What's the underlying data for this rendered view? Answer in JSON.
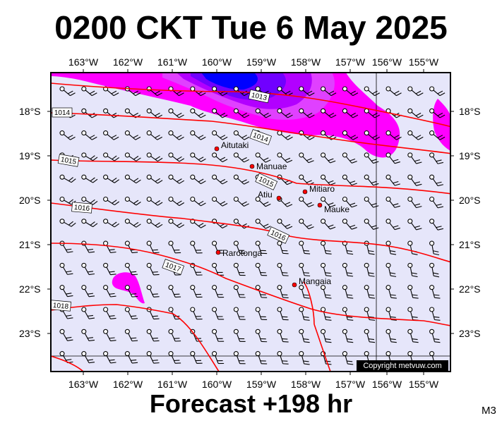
{
  "title": "0200 CKT Tue 6 May 2025",
  "footer": "Forecast +198 hr",
  "model_code": "M3",
  "copyright": "Copyright metvuw.com",
  "lon_labels": [
    "163°W",
    "162°W",
    "161°W",
    "160°W",
    "159°W",
    "158°W",
    "157°W",
    "156°W",
    "155°W"
  ],
  "lat_labels": [
    "18°S",
    "19°S",
    "20°S",
    "21°S",
    "22°S",
    "23°S"
  ],
  "towns": [
    {
      "name": "Aitutaki"
    },
    {
      "name": "Manuae"
    },
    {
      "name": "Mitiaro"
    },
    {
      "name": "Atiu"
    },
    {
      "name": "Mauke"
    },
    {
      "name": "Rarotonga"
    },
    {
      "name": "Mangaia"
    }
  ],
  "isobar_labels": [
    "1013",
    "1014",
    "1014",
    "1015",
    "1015",
    "1016",
    "1016",
    "1016",
    "1017",
    "1018"
  ],
  "colors": {
    "background": "#e6e6fa",
    "isobar": "#ff0000",
    "rain_light": "#ff00ff",
    "rain_mid": "#b200ff",
    "rain_heavy": "#0000ff",
    "town_marker": "#ff0000"
  }
}
